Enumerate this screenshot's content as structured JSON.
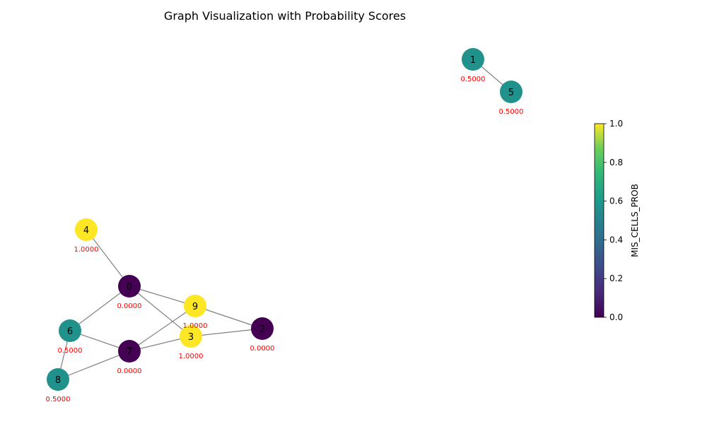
{
  "title": "Graph Visualization with Probability Scores",
  "colorbar": {
    "label": "MIS_CELLS_PROB",
    "ticks": [
      "0.0",
      "0.2",
      "0.4",
      "0.6",
      "0.8",
      "1.0"
    ],
    "tick_values": [
      0.0,
      0.2,
      0.4,
      0.6,
      0.8,
      1.0
    ],
    "colormap": "viridis"
  },
  "colors": {
    "edge": "#808080",
    "score_text": "#ff0000",
    "low": "#440154",
    "mid": "#21918c",
    "high": "#fde725"
  },
  "nodes": [
    {
      "id": "0",
      "score": 0.0,
      "score_label": "0.0000"
    },
    {
      "id": "1",
      "score": 0.5,
      "score_label": "0.5000"
    },
    {
      "id": "2",
      "score": 0.0,
      "score_label": "0.0000"
    },
    {
      "id": "3",
      "score": 1.0,
      "score_label": "1.0000"
    },
    {
      "id": "4",
      "score": 1.0,
      "score_label": "1.0000"
    },
    {
      "id": "5",
      "score": 0.5,
      "score_label": "0.5000"
    },
    {
      "id": "6",
      "score": 0.5,
      "score_label": "0.5000"
    },
    {
      "id": "7",
      "score": 0.0,
      "score_label": "0.0000"
    },
    {
      "id": "8",
      "score": 0.5,
      "score_label": "0.5000"
    },
    {
      "id": "9",
      "score": 1.0,
      "score_label": "1.0000"
    }
  ],
  "edges": [
    [
      "1",
      "5"
    ],
    [
      "4",
      "0"
    ],
    [
      "0",
      "9"
    ],
    [
      "0",
      "3"
    ],
    [
      "0",
      "6"
    ],
    [
      "9",
      "2"
    ],
    [
      "9",
      "7"
    ],
    [
      "3",
      "2"
    ],
    [
      "3",
      "7"
    ],
    [
      "6",
      "7"
    ],
    [
      "6",
      "8"
    ],
    [
      "8",
      "7"
    ]
  ]
}
